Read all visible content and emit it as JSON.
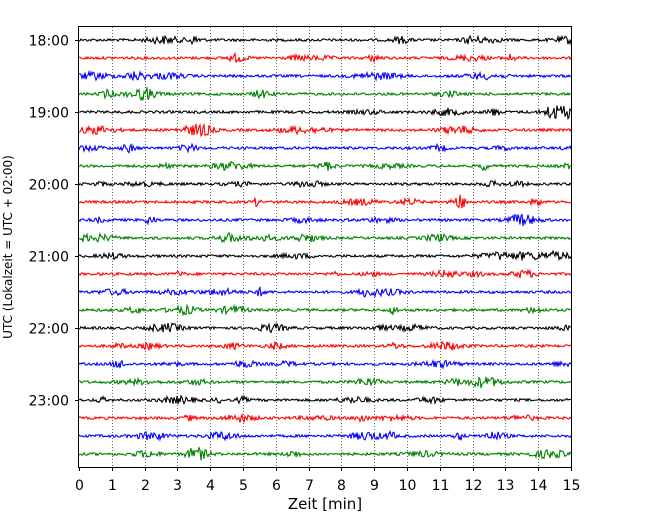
{
  "chart_data": {
    "type": "line",
    "subtype": "helicorder",
    "title": "",
    "xlabel": "Zeit  [min]",
    "ylabel": "UTC (Lokalzeit = UTC + 02:00)",
    "xlim": [
      0,
      15
    ],
    "x_ticks": [
      "0",
      "1",
      "2",
      "3",
      "4",
      "5",
      "6",
      "7",
      "8",
      "9",
      "10",
      "11",
      "12",
      "13",
      "14",
      "15"
    ],
    "y_ticks": [
      {
        "label": "18:00",
        "row": 0
      },
      {
        "label": "19:00",
        "row": 4
      },
      {
        "label": "20:00",
        "row": 8
      },
      {
        "label": "21:00",
        "row": 12
      },
      {
        "label": "22:00",
        "row": 16
      },
      {
        "label": "23:00",
        "row": 20
      }
    ],
    "grid": "vertical-dotted",
    "minutes_per_row": 15,
    "row_colors": [
      "#000000",
      "#ff0000",
      "#0000ff",
      "#008000"
    ],
    "rows": [
      {
        "start": "18:00",
        "color": "#000000"
      },
      {
        "start": "18:15",
        "color": "#ff0000"
      },
      {
        "start": "18:30",
        "color": "#0000ff"
      },
      {
        "start": "18:45",
        "color": "#008000"
      },
      {
        "start": "19:00",
        "color": "#000000"
      },
      {
        "start": "19:15",
        "color": "#ff0000"
      },
      {
        "start": "19:30",
        "color": "#0000ff"
      },
      {
        "start": "19:45",
        "color": "#008000"
      },
      {
        "start": "20:00",
        "color": "#000000"
      },
      {
        "start": "20:15",
        "color": "#ff0000"
      },
      {
        "start": "20:30",
        "color": "#0000ff"
      },
      {
        "start": "20:45",
        "color": "#008000"
      },
      {
        "start": "21:00",
        "color": "#000000"
      },
      {
        "start": "21:15",
        "color": "#ff0000"
      },
      {
        "start": "21:30",
        "color": "#0000ff"
      },
      {
        "start": "21:45",
        "color": "#008000"
      },
      {
        "start": "22:00",
        "color": "#000000"
      },
      {
        "start": "22:15",
        "color": "#ff0000"
      },
      {
        "start": "22:30",
        "color": "#0000ff"
      },
      {
        "start": "22:45",
        "color": "#008000"
      },
      {
        "start": "23:00",
        "color": "#000000"
      },
      {
        "start": "23:15",
        "color": "#ff0000"
      },
      {
        "start": "23:30",
        "color": "#0000ff"
      },
      {
        "start": "23:45",
        "color": "#008000"
      }
    ]
  }
}
